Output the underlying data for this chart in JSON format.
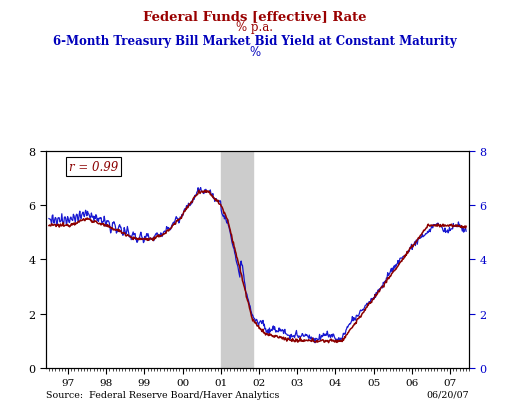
{
  "title1": "Federal Funds [effective] Rate",
  "title2": "% p.a.",
  "title1_color": "#990000",
  "title2_color": "#990000",
  "subtitle1": "6-Month Treasury Bill Market Bid Yield at Constant Maturity",
  "subtitle2": "%",
  "subtitle_color": "#0000BB",
  "ylim": [
    0,
    8
  ],
  "yticks": [
    0,
    2,
    4,
    6,
    8
  ],
  "source_text": "Source:  Federal Reserve Board/Haver Analytics",
  "date_text": "06/20/07",
  "corr_text": "r = 0.99",
  "shaded_region_start": 2001.0,
  "shaded_region_end": 2001.83,
  "plot_bg_color": "#ffffff",
  "fig_bg_color": "#ffffff",
  "ffr_color": "#8B0000",
  "tbill_color": "#0000CC",
  "shaded_color": "#cccccc",
  "xtick_years": [
    "97",
    "98",
    "99",
    "00",
    "01",
    "02",
    "03",
    "04",
    "05",
    "06",
    "07"
  ],
  "xtick_positions": [
    1997,
    1998,
    1999,
    2000,
    2001,
    2002,
    2003,
    2004,
    2005,
    2006,
    2007
  ],
  "xlim_left": 1996.42,
  "xlim_right": 2007.5
}
